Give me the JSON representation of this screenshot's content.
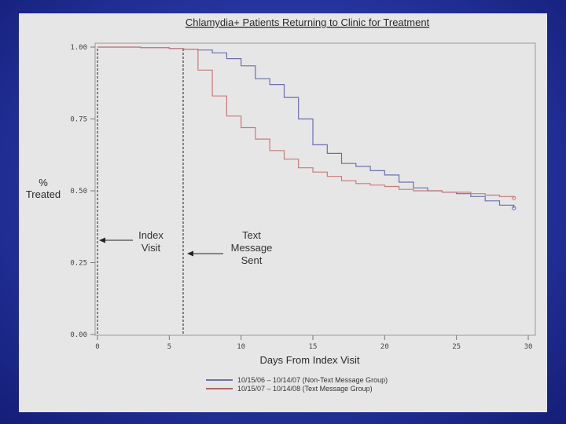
{
  "slide": {
    "background": "#2a3aa8",
    "panel_color": "#e6e6e6"
  },
  "chart_data": {
    "type": "line",
    "title": "Chlamydia+ Patients Returning to Clinic for Treatment",
    "xlabel": "Days From Index Visit",
    "ylabel": [
      "%",
      "Treated"
    ],
    "xlim": [
      0,
      30
    ],
    "ylim": [
      0,
      1
    ],
    "x_ticks": [
      "0",
      "5",
      "10",
      "15",
      "20",
      "25",
      "30"
    ],
    "y_ticks": [
      "0.00",
      "0.25",
      "0.50",
      "0.75",
      "1.00"
    ],
    "grid": false,
    "legend_position": "bottom-center",
    "series": [
      {
        "name": "10/15/06 – 10/14/07 (Non-Text Message Group)",
        "color": "#6b6fb0",
        "x": [
          0,
          1,
          3,
          5,
          6,
          7,
          8,
          9,
          10,
          11,
          12,
          13,
          14,
          15,
          16,
          17,
          18,
          19,
          20,
          21,
          22,
          23,
          24,
          25,
          26,
          27,
          28,
          29
        ],
        "y": [
          1.0,
          1.0,
          0.998,
          0.995,
          0.993,
          0.99,
          0.98,
          0.96,
          0.935,
          0.89,
          0.87,
          0.825,
          0.75,
          0.66,
          0.63,
          0.595,
          0.585,
          0.57,
          0.555,
          0.53,
          0.51,
          0.5,
          0.495,
          0.49,
          0.48,
          0.465,
          0.45,
          0.44
        ]
      },
      {
        "name": "10/15/07 – 10/14/08 (Text Message Group)",
        "color": "#c97a7a",
        "x": [
          0,
          1,
          3,
          5,
          6,
          7,
          8,
          9,
          10,
          11,
          12,
          13,
          14,
          15,
          16,
          17,
          18,
          19,
          20,
          21,
          22,
          23,
          24,
          25,
          26,
          27,
          28,
          29
        ],
        "y": [
          1.0,
          1.0,
          0.998,
          0.995,
          0.993,
          0.92,
          0.83,
          0.76,
          0.72,
          0.68,
          0.64,
          0.61,
          0.58,
          0.565,
          0.55,
          0.535,
          0.525,
          0.52,
          0.515,
          0.505,
          0.5,
          0.5,
          0.495,
          0.495,
          0.49,
          0.485,
          0.48,
          0.475
        ]
      }
    ],
    "annotations": [
      {
        "label": [
          "Index",
          "Visit"
        ],
        "x": 0
      },
      {
        "label": [
          "Text",
          "Message",
          "Sent"
        ],
        "x": 6
      }
    ]
  }
}
